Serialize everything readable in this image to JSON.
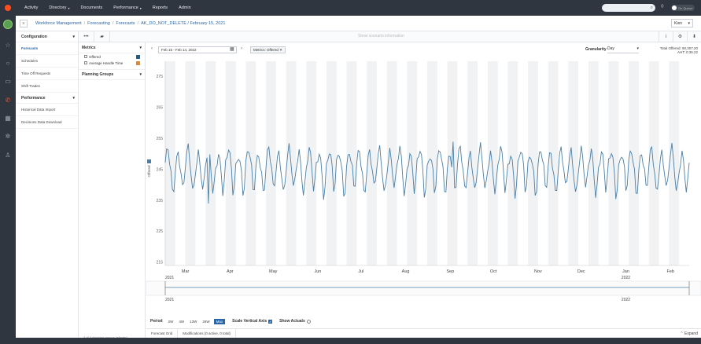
{
  "topnav": {
    "items": [
      {
        "label": "Activity"
      },
      {
        "label": "Directory",
        "caret": "▾"
      },
      {
        "label": "Documents"
      },
      {
        "label": "Performance",
        "caret": "▾"
      },
      {
        "label": "Reports"
      },
      {
        "label": "Admin"
      }
    ],
    "search_icon": "⌕",
    "bell_icon": "🔔",
    "status_label": "On Queue"
  },
  "breadcrumb": {
    "items": [
      "Workforce Management",
      "Forecasting",
      "Forecasts",
      "AK_DO_NOT_DELETE / February 15, 2021"
    ],
    "language": "Kien"
  },
  "toolbar": {
    "more_label": "•••",
    "layers_label": "▰",
    "center_text": "Show scenario information",
    "info_label": "i",
    "settings_label": "⚙",
    "download_label": "⬇"
  },
  "sidebar": {
    "sections": [
      {
        "title": "Configuration",
        "items": [
          "Forecasts",
          "Schedules",
          "Time Off Requests",
          "Shift Trades"
        ]
      },
      {
        "title": "Performance",
        "items": [
          "Historical Data Import",
          "Decisions Data Download"
        ]
      }
    ],
    "active_item": "Forecasts",
    "footer": "4 of 4 planning groups selected"
  },
  "metrics": {
    "title": "Metrics",
    "rows": [
      {
        "label": "Offered",
        "checked": true,
        "color": "#1f5f8b"
      },
      {
        "label": "Average Handle Time",
        "checked": false,
        "color": "#e08a2c"
      }
    ],
    "planning_groups_title": "Planning Groups"
  },
  "chart_header": {
    "date_range": "Feb 15 - Feb 14, 2022",
    "metric_chip": "Metrics: Offered ✕",
    "granularity_label": "Granularity",
    "granularity_value": "Day",
    "totals_line1": "Total Offered: 90,307.20",
    "totals_line2": "AHT: 0:36.22"
  },
  "period": {
    "label": "Period",
    "buttons": [
      "2W",
      "4W",
      "13W",
      "26W",
      "Max"
    ],
    "active": "Max",
    "scale_label": "Scale Vertical Axis",
    "scale_checked": true,
    "actuals_label": "Show Actuals",
    "actuals_checked": false
  },
  "bottom_tabs": {
    "tabs": [
      "Forecast Grid",
      "Modifications (0 active, 0 total)"
    ],
    "expand_label": "⌃ Expand"
  },
  "chart_data": {
    "type": "line",
    "xlabel": "",
    "ylabel": "Offered",
    "ylim": [
      214,
      280
    ],
    "yticks": [
      215,
      225,
      235,
      245,
      255,
      265,
      275
    ],
    "x_start": "2021-02-15",
    "x_end": "2022-02-14",
    "month_labels": [
      "Mar",
      "Apr",
      "May",
      "Jun",
      "Jul",
      "Aug",
      "Sep",
      "Oct",
      "Nov",
      "Dec",
      "Jan",
      "Feb"
    ],
    "year_labels": [
      "2021",
      "2022"
    ],
    "series": [
      {
        "name": "Offered",
        "color": "#4a7fa6",
        "weekly_pattern": [
          246,
          249,
          251,
          248,
          244,
          238,
          240
        ],
        "approx_range": [
          235,
          254
        ]
      }
    ],
    "grid": "weekly shaded bands",
    "legend": "none"
  }
}
